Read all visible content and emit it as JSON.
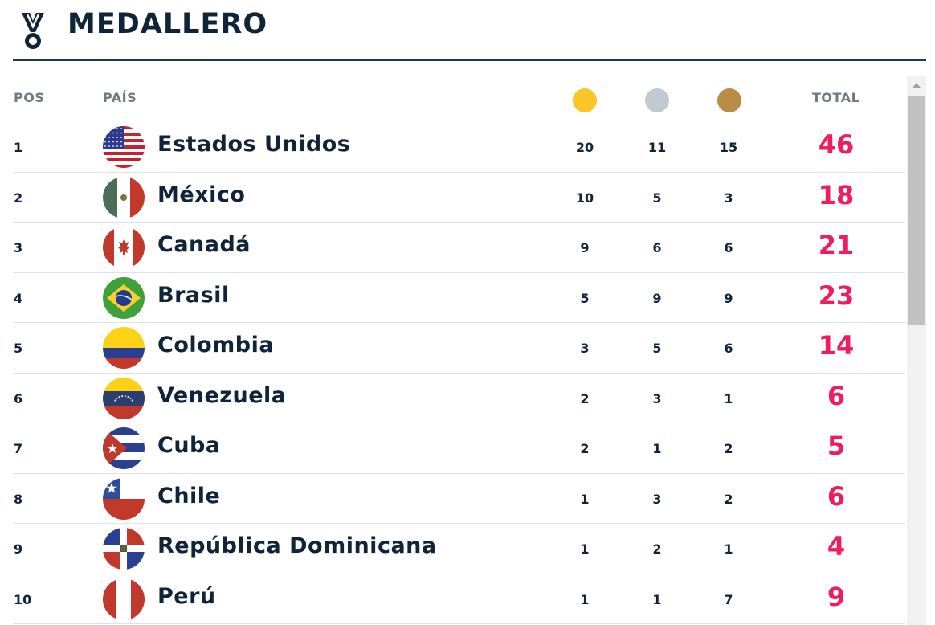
{
  "header": {
    "title": "MEDALLERO",
    "icon": "medal-icon"
  },
  "columns": {
    "pos": "POS",
    "pais": "PAÍS",
    "total": "TOTAL"
  },
  "colors": {
    "gold": "#fdc52a",
    "silver": "#c1cad2",
    "bronze": "#b98d45",
    "total": "#ee1d60",
    "navy": "#0f2438"
  },
  "rows": [
    {
      "pos": "1",
      "country": "Estados Unidos",
      "gold": "20",
      "silver": "11",
      "bronze": "15",
      "total": "46",
      "flag": "usa"
    },
    {
      "pos": "2",
      "country": "México",
      "gold": "10",
      "silver": "5",
      "bronze": "3",
      "total": "18",
      "flag": "mex"
    },
    {
      "pos": "3",
      "country": "Canadá",
      "gold": "9",
      "silver": "6",
      "bronze": "6",
      "total": "21",
      "flag": "can"
    },
    {
      "pos": "4",
      "country": "Brasil",
      "gold": "5",
      "silver": "9",
      "bronze": "9",
      "total": "23",
      "flag": "bra"
    },
    {
      "pos": "5",
      "country": "Colombia",
      "gold": "3",
      "silver": "5",
      "bronze": "6",
      "total": "14",
      "flag": "col"
    },
    {
      "pos": "6",
      "country": "Venezuela",
      "gold": "2",
      "silver": "3",
      "bronze": "1",
      "total": "6",
      "flag": "ven"
    },
    {
      "pos": "7",
      "country": "Cuba",
      "gold": "2",
      "silver": "1",
      "bronze": "2",
      "total": "5",
      "flag": "cub"
    },
    {
      "pos": "8",
      "country": "Chile",
      "gold": "1",
      "silver": "3",
      "bronze": "2",
      "total": "6",
      "flag": "chi"
    },
    {
      "pos": "9",
      "country": "República Dominicana",
      "gold": "1",
      "silver": "2",
      "bronze": "1",
      "total": "4",
      "flag": "dom"
    },
    {
      "pos": "10",
      "country": "Perú",
      "gold": "1",
      "silver": "1",
      "bronze": "7",
      "total": "9",
      "flag": "per"
    }
  ]
}
